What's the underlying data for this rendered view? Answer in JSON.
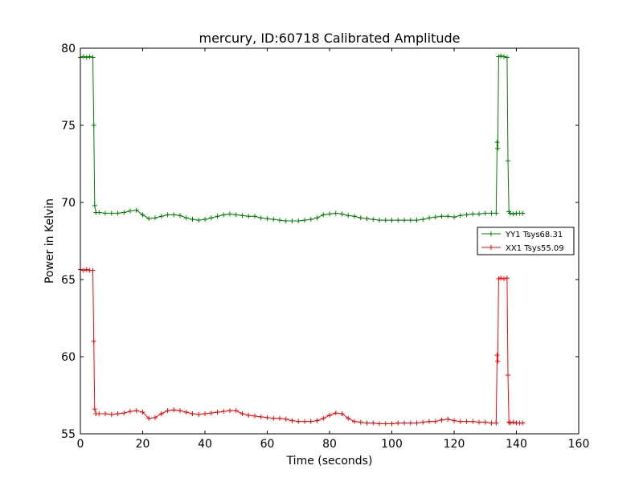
{
  "chart_data": {
    "type": "line",
    "title": "mercury, ID:60718 Calibrated Amplitude",
    "xlabel": "Time (seconds)",
    "ylabel": "Power in Kelvin",
    "xlim": [
      0,
      160
    ],
    "ylim": [
      55,
      80
    ],
    "xticks": [
      "0",
      "20",
      "40",
      "60",
      "80",
      "100",
      "120",
      "140",
      "160"
    ],
    "yticks": [
      "55",
      "60",
      "65",
      "70",
      "75",
      "80"
    ],
    "grid": false,
    "legend_position": "right",
    "series": [
      {
        "name": "YY1 Tsys68.31",
        "color": "#008000",
        "marker": "+",
        "x": [
          0,
          1,
          2,
          3,
          4,
          4.3,
          4.6,
          5,
          6,
          8,
          10,
          12,
          14,
          16,
          18,
          20,
          22,
          24,
          26,
          28,
          30,
          32,
          34,
          36,
          38,
          40,
          42,
          44,
          46,
          48,
          50,
          52,
          54,
          56,
          58,
          60,
          62,
          64,
          66,
          68,
          70,
          72,
          74,
          76,
          78,
          80,
          82,
          84,
          86,
          88,
          90,
          92,
          94,
          96,
          98,
          100,
          102,
          104,
          106,
          108,
          110,
          112,
          114,
          116,
          118,
          120,
          122,
          124,
          126,
          128,
          130,
          132,
          133.5,
          133.8,
          134,
          134.3,
          135,
          136,
          137,
          137.3,
          137.6,
          138,
          139,
          140,
          141,
          142
        ],
        "y": [
          79.4,
          79.45,
          79.4,
          79.45,
          79.4,
          75.0,
          69.8,
          69.35,
          69.35,
          69.3,
          69.3,
          69.3,
          69.35,
          69.45,
          69.5,
          69.2,
          68.95,
          69.0,
          69.1,
          69.2,
          69.2,
          69.15,
          69.0,
          68.9,
          68.85,
          68.9,
          69.0,
          69.1,
          69.2,
          69.25,
          69.2,
          69.15,
          69.1,
          69.1,
          69.0,
          68.95,
          68.9,
          68.85,
          68.8,
          68.8,
          68.8,
          68.85,
          68.9,
          69.0,
          69.2,
          69.25,
          69.3,
          69.25,
          69.15,
          69.1,
          69.0,
          68.95,
          68.9,
          68.85,
          68.85,
          68.85,
          68.85,
          68.85,
          68.85,
          68.85,
          68.9,
          69.0,
          69.05,
          69.1,
          69.1,
          69.05,
          69.15,
          69.2,
          69.25,
          69.25,
          69.3,
          69.3,
          69.3,
          73.9,
          73.5,
          79.45,
          79.5,
          79.45,
          79.4,
          72.7,
          69.4,
          69.3,
          69.25,
          69.3,
          69.3,
          69.3
        ]
      },
      {
        "name": "XX1 Tsys55.09",
        "color": "#ff0000",
        "marker": "+",
        "x": [
          0,
          1,
          2,
          3,
          4,
          4.3,
          4.6,
          5,
          6,
          8,
          10,
          12,
          14,
          16,
          18,
          20,
          22,
          24,
          26,
          28,
          30,
          32,
          34,
          36,
          38,
          40,
          42,
          44,
          46,
          48,
          50,
          52,
          54,
          56,
          58,
          60,
          62,
          64,
          66,
          68,
          70,
          72,
          74,
          76,
          78,
          80,
          82,
          84,
          86,
          88,
          90,
          92,
          94,
          96,
          98,
          100,
          102,
          104,
          106,
          108,
          110,
          112,
          114,
          116,
          118,
          120,
          122,
          124,
          126,
          128,
          130,
          132,
          133.5,
          133.8,
          134,
          134.3,
          135,
          136,
          137,
          137.3,
          137.6,
          138,
          139,
          140,
          141,
          142
        ],
        "y": [
          65.65,
          65.6,
          65.65,
          65.6,
          65.6,
          61.0,
          56.6,
          56.3,
          56.3,
          56.3,
          56.25,
          56.3,
          56.35,
          56.45,
          56.5,
          56.4,
          56.0,
          56.05,
          56.3,
          56.5,
          56.55,
          56.5,
          56.4,
          56.3,
          56.25,
          56.3,
          56.35,
          56.4,
          56.45,
          56.5,
          56.5,
          56.3,
          56.2,
          56.15,
          56.1,
          56.05,
          56.0,
          56.0,
          55.95,
          55.85,
          55.8,
          55.8,
          55.8,
          55.85,
          56.0,
          56.2,
          56.35,
          56.3,
          56.0,
          55.8,
          55.75,
          55.7,
          55.7,
          55.65,
          55.65,
          55.65,
          55.7,
          55.7,
          55.7,
          55.7,
          55.75,
          55.8,
          55.8,
          55.9,
          55.95,
          55.85,
          55.8,
          55.8,
          55.8,
          55.75,
          55.75,
          55.7,
          55.7,
          60.1,
          59.7,
          65.05,
          65.1,
          65.05,
          65.1,
          58.8,
          55.75,
          55.7,
          55.75,
          55.7,
          55.7,
          55.7
        ]
      }
    ]
  }
}
